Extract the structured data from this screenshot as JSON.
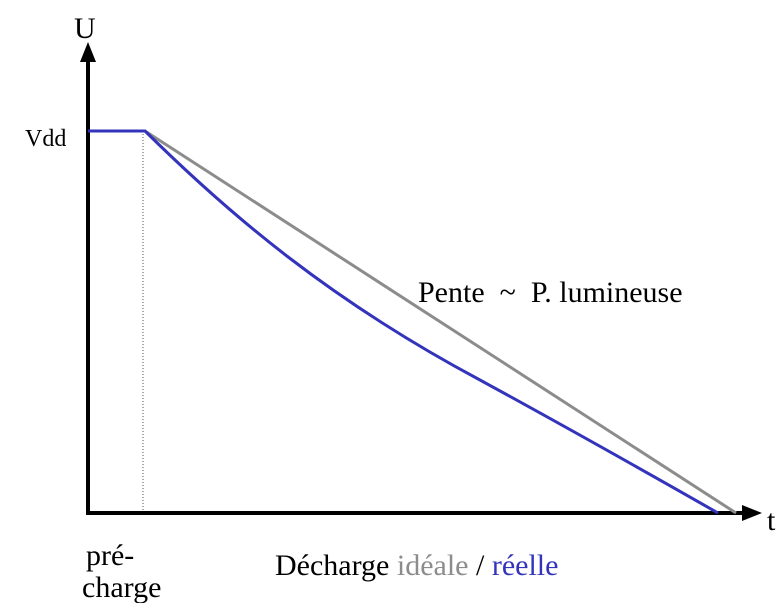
{
  "axes": {
    "y_label": "U",
    "x_label": "t",
    "y_level": "Vdd"
  },
  "annotations": {
    "slope": "Pente  ~  P. lumineuse",
    "precharge_line1": "pré-",
    "precharge_line2": "charge"
  },
  "legend": {
    "prefix": "Décharge",
    "ideal": "idéale",
    "separator": "/",
    "real": "réelle"
  }
}
